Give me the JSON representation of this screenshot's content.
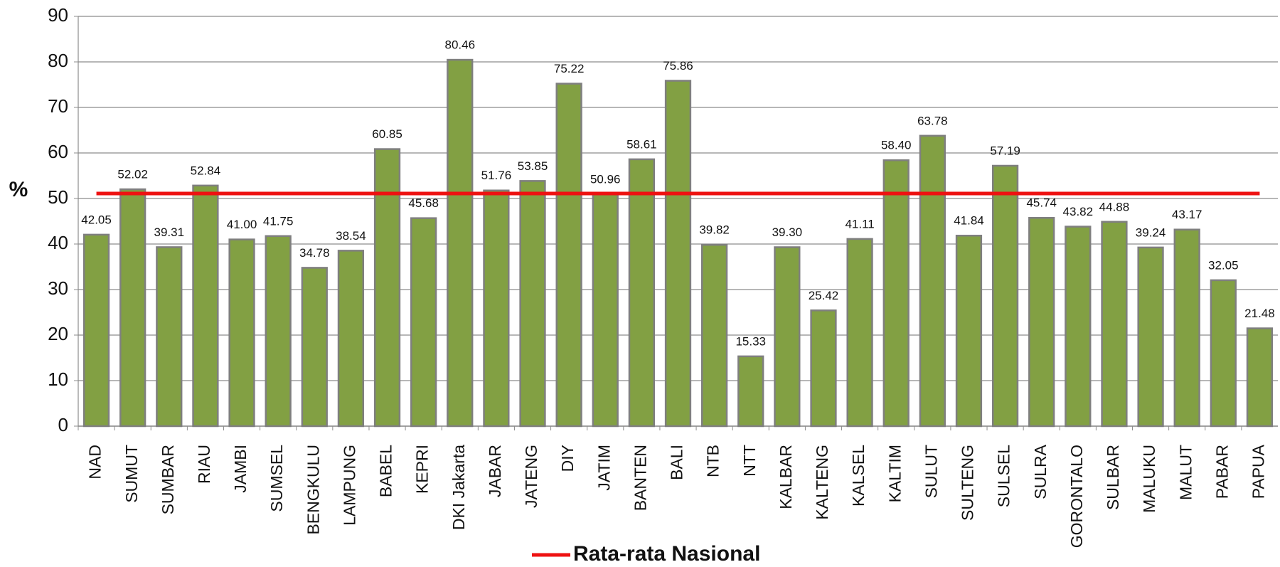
{
  "chart_data": {
    "type": "bar",
    "y_label": "%",
    "categories": [
      "NAD",
      "SUMUT",
      "SUMBAR",
      "RIAU",
      "JAMBI",
      "SUMSEL",
      "BENGKULU",
      "LAMPUNG",
      "BABEL",
      "KEPRI",
      "DKI Jakarta",
      "JABAR",
      "JATENG",
      "DIY",
      "JATIM",
      "BANTEN",
      "BALI",
      "NTB",
      "NTT",
      "KALBAR",
      "KALTENG",
      "KALSEL",
      "KALTIM",
      "SULUT",
      "SULTENG",
      "SULSEL",
      "SULRA",
      "GORONTALO",
      "SULBAR",
      "MALUKU",
      "MALUT",
      "PABAR",
      "PAPUA"
    ],
    "values": [
      42.05,
      52.02,
      39.31,
      52.84,
      41.0,
      41.75,
      34.78,
      38.54,
      60.85,
      45.68,
      80.46,
      51.76,
      53.85,
      75.22,
      50.96,
      58.61,
      75.86,
      39.82,
      15.33,
      39.3,
      25.42,
      41.11,
      58.4,
      63.78,
      41.84,
      57.19,
      45.74,
      43.82,
      44.88,
      39.24,
      43.17,
      32.05,
      21.48
    ],
    "value_labels": [
      "42.05",
      "52.02",
      "39.31",
      "52.84",
      "41.00",
      "41.75",
      "34.78",
      "38.54",
      "60.85",
      "45.68",
      "80.46",
      "51.76",
      "53.85",
      "75.22",
      "50.96",
      "58.61",
      "75.86",
      "39.82",
      "15.33",
      "39.30",
      "25.42",
      "41.11",
      "58.40",
      "63.78",
      "41.84",
      "57.19",
      "45.74",
      "43.82",
      "44.88",
      "39.24",
      "43.17",
      "32.05",
      "21.48"
    ],
    "color": "#82a043",
    "ylim": [
      0,
      90
    ],
    "yticks": [
      0,
      10,
      20,
      30,
      40,
      50,
      60,
      70,
      80,
      90
    ],
    "grid": true,
    "reference_line": {
      "name": "Rata-rata Nasional",
      "value": 51.1,
      "color": "#ee1111"
    }
  }
}
